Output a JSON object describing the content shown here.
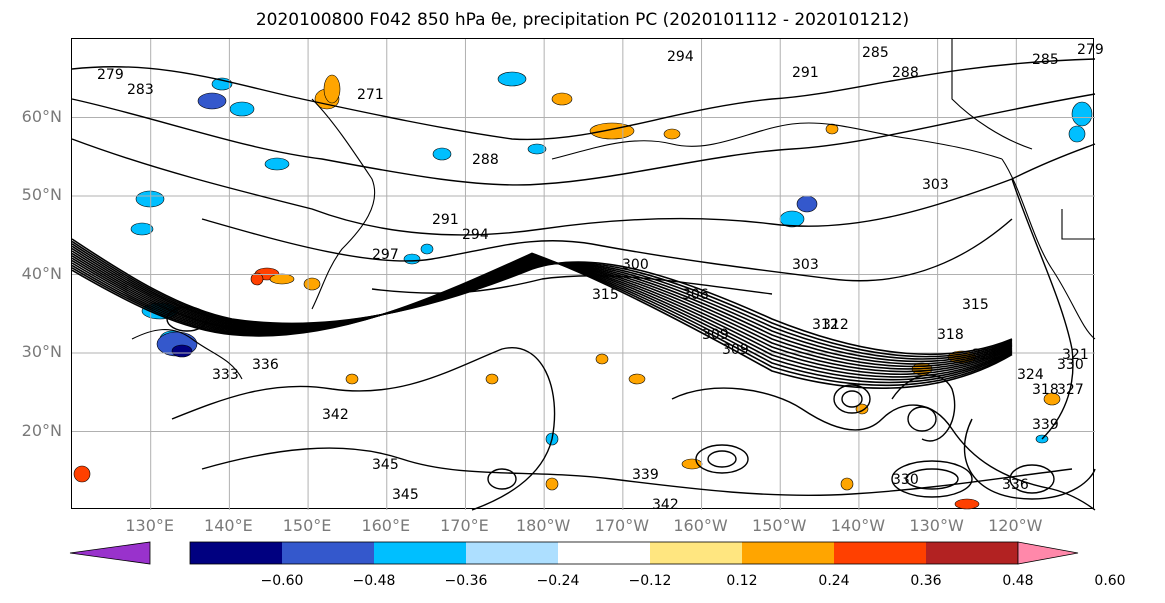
{
  "title": "2020100800 F042 850 hPa θe, precipitation PC (2020101112 - 2020101212)",
  "map": {
    "projection": "cylindrical",
    "lon_range": [
      120,
      250
    ],
    "lat_range": [
      10,
      70
    ],
    "lat_labels": [
      "60°N",
      "50°N",
      "40°N",
      "30°N",
      "20°N"
    ],
    "lat_values": [
      60,
      50,
      40,
      30,
      20
    ],
    "lon_labels": [
      "130°E",
      "140°E",
      "150°E",
      "160°E",
      "170°E",
      "180°W",
      "170°W",
      "160°W",
      "150°W",
      "140°W",
      "130°W",
      "120°W"
    ],
    "lon_values": [
      130,
      140,
      150,
      160,
      170,
      180,
      190,
      200,
      210,
      220,
      230,
      240
    ],
    "grid": true,
    "contour_labels": [
      "279",
      "283",
      "271",
      "294",
      "285",
      "291",
      "288",
      "285",
      "279",
      "288",
      "303",
      "291",
      "294",
      "297",
      "300",
      "303",
      "306",
      "309",
      "312",
      "315",
      "318",
      "321",
      "324",
      "327",
      "330",
      "333",
      "336",
      "339",
      "342",
      "345",
      "315",
      "318",
      "321",
      "312",
      "309",
      "330",
      "336",
      "339",
      "342",
      "345"
    ],
    "contour_label_positions_note": "contour labels shown on the map"
  },
  "colorbar": {
    "ticks": [
      "−0.60",
      "−0.48",
      "−0.36",
      "−0.24",
      "−0.12",
      "0.12",
      "0.24",
      "0.36",
      "0.48",
      "0.60"
    ],
    "colors": [
      "#9932CC",
      "#000080",
      "#3458CC",
      "#00BFFF",
      "#ADDFFF",
      "#FFFFFF",
      "#FFE680",
      "#FFA500",
      "#FF4000",
      "#B22222",
      "#FF88AA"
    ],
    "extend": "both"
  },
  "colors": {
    "contour": "#000000",
    "grid": "#b0b0b0",
    "coast": "#000000"
  }
}
